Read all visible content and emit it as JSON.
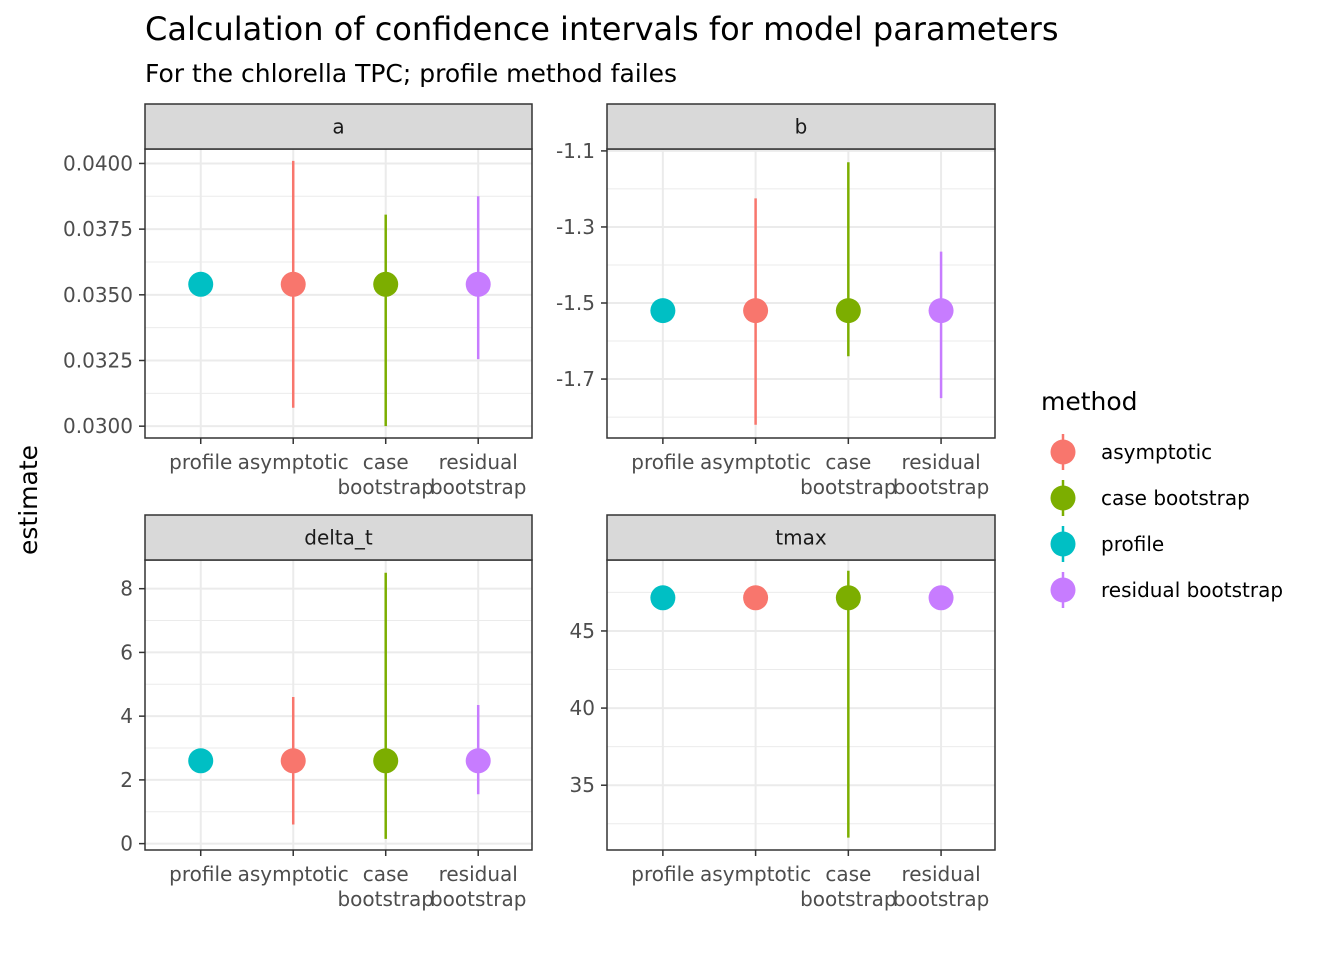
{
  "title": "Calculation of confidence intervals for model parameters",
  "subtitle": "For the chlorella TPC; profile method failes",
  "ylabel": "estimate",
  "legend": {
    "title": "method",
    "items": [
      {
        "label": "asymptotic",
        "color": "#F8766D"
      },
      {
        "label": "case bootstrap",
        "color": "#7CAE00"
      },
      {
        "label": "profile",
        "color": "#00BFC4"
      },
      {
        "label": "residual bootstrap",
        "color": "#C77CFF"
      }
    ]
  },
  "chart_data": {
    "type": "scatter",
    "x_categories": [
      {
        "key": "profile",
        "lines": [
          "profile"
        ]
      },
      {
        "key": "asymptotic",
        "lines": [
          "asymptotic"
        ]
      },
      {
        "key": "case bootstrap",
        "lines": [
          "case",
          "bootstrap"
        ]
      },
      {
        "key": "residual bootstrap",
        "lines": [
          "residual",
          "bootstrap"
        ]
      }
    ],
    "colors": {
      "asymptotic": "#F8766D",
      "case bootstrap": "#7CAE00",
      "profile": "#00BFC4",
      "residual bootstrap": "#C77CFF"
    },
    "panels": [
      {
        "name": "a",
        "ylim": [
          0.02955,
          0.04055
        ],
        "yticks": [
          0.03,
          0.0325,
          0.035,
          0.0375,
          0.04
        ],
        "yticklabels": [
          "0.0300",
          "0.0325",
          "0.0350",
          "0.0375",
          "0.0400"
        ],
        "points": [
          {
            "method": "profile",
            "estimate": 0.0354,
            "low": null,
            "high": null
          },
          {
            "method": "asymptotic",
            "estimate": 0.0354,
            "low": 0.0307,
            "high": 0.0401
          },
          {
            "method": "case bootstrap",
            "estimate": 0.0354,
            "low": 0.03,
            "high": 0.03805
          },
          {
            "method": "residual bootstrap",
            "estimate": 0.0354,
            "low": 0.03255,
            "high": 0.03875
          }
        ]
      },
      {
        "name": "b",
        "ylim": [
          -1.855,
          -1.095
        ],
        "yticks": [
          -1.7,
          -1.5,
          -1.3,
          -1.1
        ],
        "yticklabels": [
          "-1.7",
          "-1.5",
          "-1.3",
          "-1.1"
        ],
        "points": [
          {
            "method": "profile",
            "estimate": -1.52,
            "low": null,
            "high": null
          },
          {
            "method": "asymptotic",
            "estimate": -1.52,
            "low": -1.82,
            "high": -1.225
          },
          {
            "method": "case bootstrap",
            "estimate": -1.52,
            "low": -1.64,
            "high": -1.13
          },
          {
            "method": "residual bootstrap",
            "estimate": -1.52,
            "low": -1.75,
            "high": -1.365
          }
        ]
      },
      {
        "name": "delta_t",
        "ylim": [
          -0.2,
          8.9
        ],
        "yticks": [
          0,
          2,
          4,
          6,
          8
        ],
        "yticklabels": [
          "0",
          "2",
          "4",
          "6",
          "8"
        ],
        "points": [
          {
            "method": "profile",
            "estimate": 2.6,
            "low": null,
            "high": null
          },
          {
            "method": "asymptotic",
            "estimate": 2.6,
            "low": 0.6,
            "high": 4.6
          },
          {
            "method": "case bootstrap",
            "estimate": 2.6,
            "low": 0.15,
            "high": 8.5
          },
          {
            "method": "residual bootstrap",
            "estimate": 2.6,
            "low": 1.55,
            "high": 4.35
          }
        ]
      },
      {
        "name": "tmax",
        "ylim": [
          30.8,
          49.6
        ],
        "yticks": [
          35,
          40,
          45
        ],
        "yticklabels": [
          "35",
          "40",
          "45"
        ],
        "points": [
          {
            "method": "profile",
            "estimate": 47.15,
            "low": null,
            "high": null
          },
          {
            "method": "asymptotic",
            "estimate": 47.15,
            "low": 46.4,
            "high": 47.9
          },
          {
            "method": "case bootstrap",
            "estimate": 47.15,
            "low": 31.6,
            "high": 48.9
          },
          {
            "method": "residual bootstrap",
            "estimate": 47.15,
            "low": 46.5,
            "high": 47.8
          }
        ]
      }
    ],
    "grid": true,
    "legend_position": "right"
  }
}
